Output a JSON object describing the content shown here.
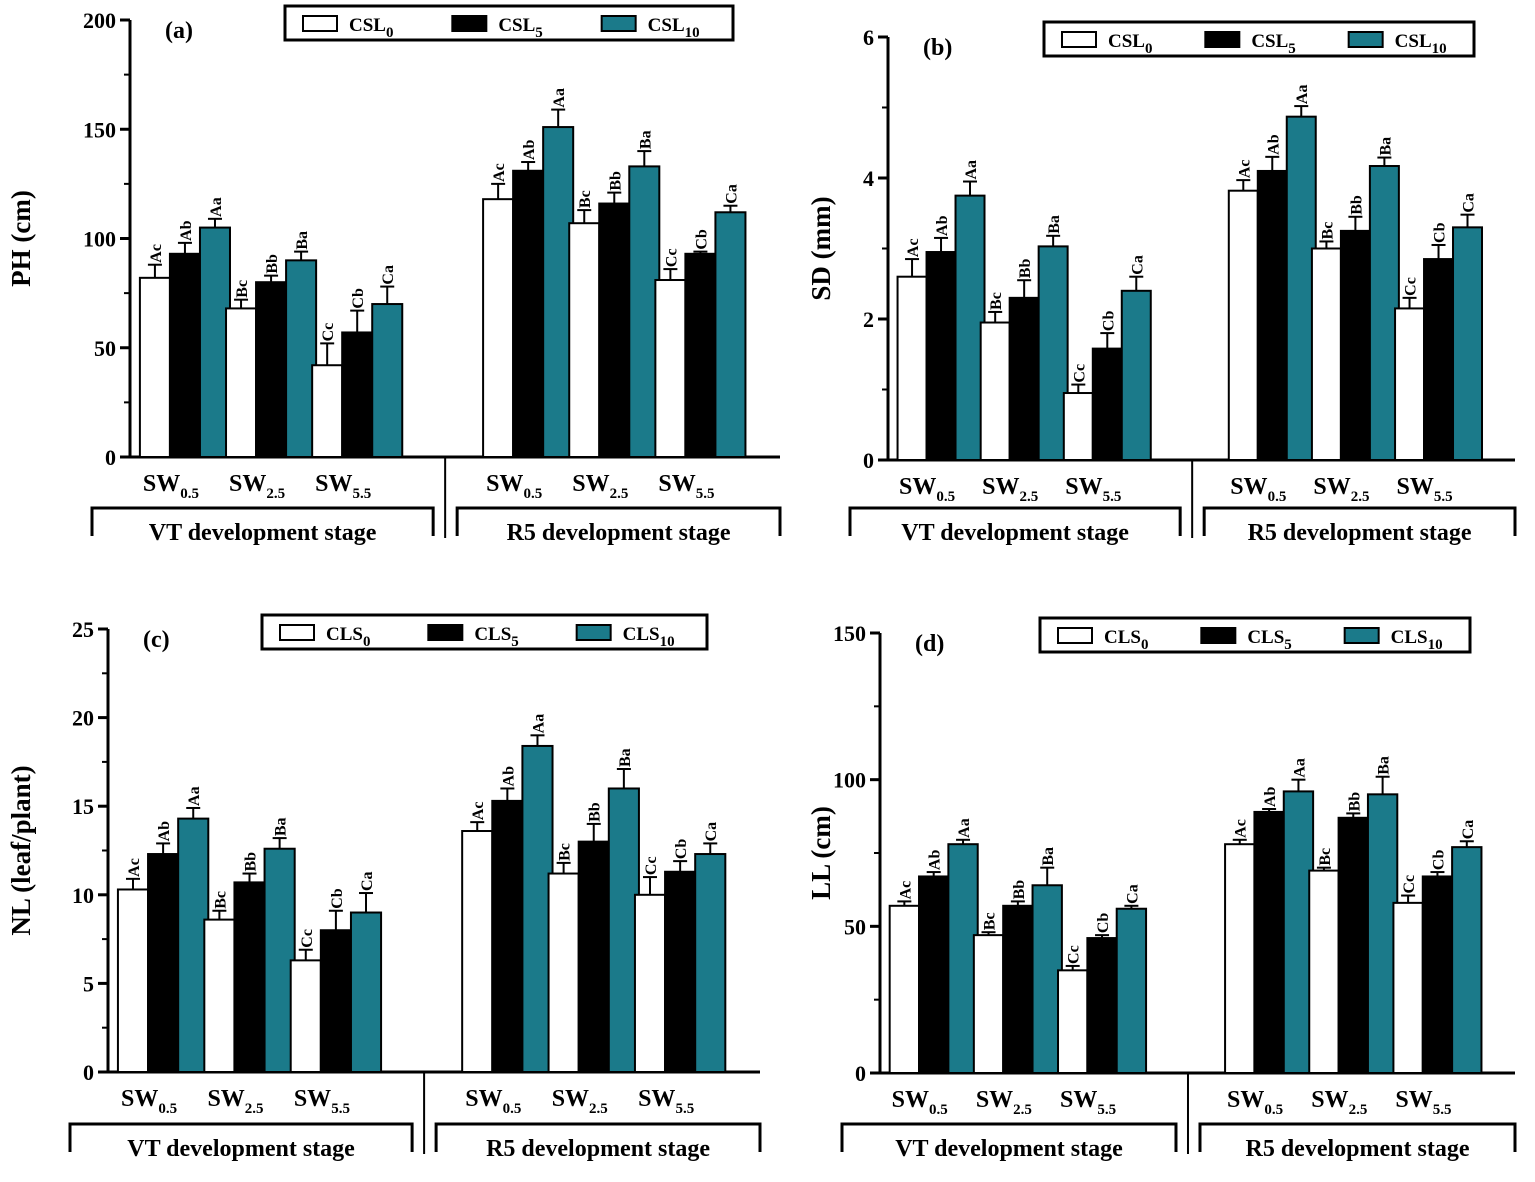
{
  "colors": {
    "s0": "#ffffff",
    "s5": "#000000",
    "s10": "#1b7a8a"
  },
  "chart_data": [
    {
      "type": "bar",
      "panel": "(a)",
      "ylabel": "PH (cm)",
      "ylim": [
        0,
        200
      ],
      "yticks": [
        0,
        50,
        100,
        150,
        200
      ],
      "legend": [
        "CSL",
        "CSL",
        "CSL"
      ],
      "legend_subs": [
        "0",
        "5",
        "10"
      ],
      "categories": [
        "SW",
        "SW",
        "SW",
        "SW",
        "SW",
        "SW"
      ],
      "category_subs": [
        "0.5",
        "2.5",
        "5.5",
        "0.5",
        "2.5",
        "5.5"
      ],
      "stages": [
        "VT development stage",
        "R5 development stage"
      ],
      "series": [
        {
          "name": "CSL0",
          "values": [
            82,
            68,
            42,
            118,
            107,
            81
          ],
          "errors": [
            6,
            4,
            10,
            7,
            6,
            5
          ],
          "labels": [
            "Ac",
            "Bc",
            "Cc",
            "Ac",
            "Bc",
            "Cc"
          ]
        },
        {
          "name": "CSL5",
          "values": [
            93,
            80,
            57,
            131,
            116,
            93
          ],
          "errors": [
            5,
            3,
            10,
            4,
            5,
            1
          ],
          "labels": [
            "Ab",
            "Bb",
            "Cb",
            "Ab",
            "Bb",
            "Cb"
          ]
        },
        {
          "name": "CSL10",
          "values": [
            105,
            90,
            70,
            151,
            133,
            112
          ],
          "errors": [
            4,
            4,
            8,
            8,
            7,
            3
          ],
          "labels": [
            "Aa",
            "Ba",
            "Ca",
            "Aa",
            "Ba",
            "Ca"
          ]
        }
      ]
    },
    {
      "type": "bar",
      "panel": "(b)",
      "ylabel": "SD (mm)",
      "ylim": [
        0,
        6
      ],
      "yticks": [
        0,
        2,
        4,
        6
      ],
      "legend": [
        "CSL",
        "CSL",
        "CSL"
      ],
      "legend_subs": [
        "0",
        "5",
        "10"
      ],
      "categories": [
        "SW",
        "SW",
        "SW",
        "SW",
        "SW",
        "SW"
      ],
      "category_subs": [
        "0.5",
        "2.5",
        "5.5",
        "0.5",
        "2.5",
        "5.5"
      ],
      "stages": [
        "VT development stage",
        "R5 development stage"
      ],
      "series": [
        {
          "name": "CSL0",
          "values": [
            2.6,
            1.95,
            0.95,
            3.82,
            3.0,
            2.15
          ],
          "errors": [
            0.25,
            0.15,
            0.12,
            0.15,
            0.1,
            0.15
          ],
          "labels": [
            "Ac",
            "Bc",
            "Cc",
            "Ac",
            "Bc",
            "Cc"
          ]
        },
        {
          "name": "CSL5",
          "values": [
            2.95,
            2.3,
            1.58,
            4.1,
            3.25,
            2.85
          ],
          "errors": [
            0.2,
            0.25,
            0.22,
            0.2,
            0.2,
            0.2
          ],
          "labels": [
            "Ab",
            "Bb",
            "Cb",
            "Ab",
            "Bb",
            "Cb"
          ]
        },
        {
          "name": "CSL10",
          "values": [
            3.75,
            3.03,
            2.4,
            4.87,
            4.17,
            3.3
          ],
          "errors": [
            0.2,
            0.15,
            0.2,
            0.15,
            0.12,
            0.18
          ],
          "labels": [
            "Aa",
            "Ba",
            "Ca",
            "Aa",
            "Ba",
            "Ca"
          ]
        }
      ]
    },
    {
      "type": "bar",
      "panel": "(c)",
      "ylabel": "NL (leaf/plant)",
      "ylim": [
        0,
        25
      ],
      "yticks": [
        0,
        5,
        10,
        15,
        20,
        25
      ],
      "legend": [
        "CLS",
        "CLS",
        "CLS"
      ],
      "legend_subs": [
        "0",
        "5",
        "10"
      ],
      "categories": [
        "SW",
        "SW",
        "SW",
        "SW",
        "SW",
        "SW"
      ],
      "category_subs": [
        "0.5",
        "2.5",
        "5.5",
        "0.5",
        "2.5",
        "5.5"
      ],
      "stages": [
        "VT development stage",
        "R5 development stage"
      ],
      "series": [
        {
          "name": "CLS0",
          "values": [
            10.3,
            8.6,
            6.3,
            13.6,
            11.2,
            10.0
          ],
          "errors": [
            0.6,
            0.5,
            0.6,
            0.5,
            0.6,
            1.0
          ],
          "labels": [
            "Ac",
            "Bc",
            "Cc",
            "Ac",
            "Bc",
            "Cc"
          ]
        },
        {
          "name": "CLS5",
          "values": [
            12.3,
            10.7,
            8.0,
            15.3,
            13.0,
            11.3
          ],
          "errors": [
            0.6,
            0.5,
            1.1,
            0.7,
            1.0,
            0.6
          ],
          "labels": [
            "Ab",
            "Bb",
            "Cb",
            "Ab",
            "Bb",
            "Cb"
          ]
        },
        {
          "name": "CLS10",
          "values": [
            14.3,
            12.6,
            9.0,
            18.4,
            16.0,
            12.3
          ],
          "errors": [
            0.6,
            0.6,
            1.1,
            0.6,
            1.1,
            0.6
          ],
          "labels": [
            "Aa",
            "Ba",
            "Ca",
            "Aa",
            "Ba",
            "Ca"
          ]
        }
      ]
    },
    {
      "type": "bar",
      "panel": "(d)",
      "ylabel": "LL (cm)",
      "ylim": [
        0,
        150
      ],
      "yticks": [
        0,
        50,
        100,
        150
      ],
      "legend": [
        "CLS",
        "CLS",
        "CLS"
      ],
      "legend_subs": [
        "0",
        "5",
        "10"
      ],
      "categories": [
        "SW",
        "SW",
        "SW",
        "SW",
        "SW",
        "SW"
      ],
      "category_subs": [
        "0.5",
        "2.5",
        "5.5",
        "0.5",
        "2.5",
        "5.5"
      ],
      "stages": [
        "VT development stage",
        "R5 development stage"
      ],
      "series": [
        {
          "name": "CLS0",
          "values": [
            57,
            47,
            35,
            78,
            69,
            58
          ],
          "errors": [
            1.5,
            1,
            1.5,
            1.5,
            1,
            2.5
          ],
          "labels": [
            "Ac",
            "Bc",
            "Cc",
            "Ac",
            "Bc",
            "Cc"
          ]
        },
        {
          "name": "CLS5",
          "values": [
            67,
            57,
            46,
            89,
            87,
            67
          ],
          "errors": [
            1.5,
            1.5,
            1,
            1,
            1.5,
            1.5
          ],
          "labels": [
            "Ab",
            "Bb",
            "Cb",
            "Ab",
            "Bb",
            "Cb"
          ]
        },
        {
          "name": "CLS10",
          "values": [
            78,
            64,
            56,
            96,
            95,
            77
          ],
          "errors": [
            1.5,
            6,
            1,
            4,
            6,
            2
          ],
          "labels": [
            "Aa",
            "Ba",
            "Ca",
            "Aa",
            "Ba",
            "Ca"
          ]
        }
      ]
    }
  ]
}
